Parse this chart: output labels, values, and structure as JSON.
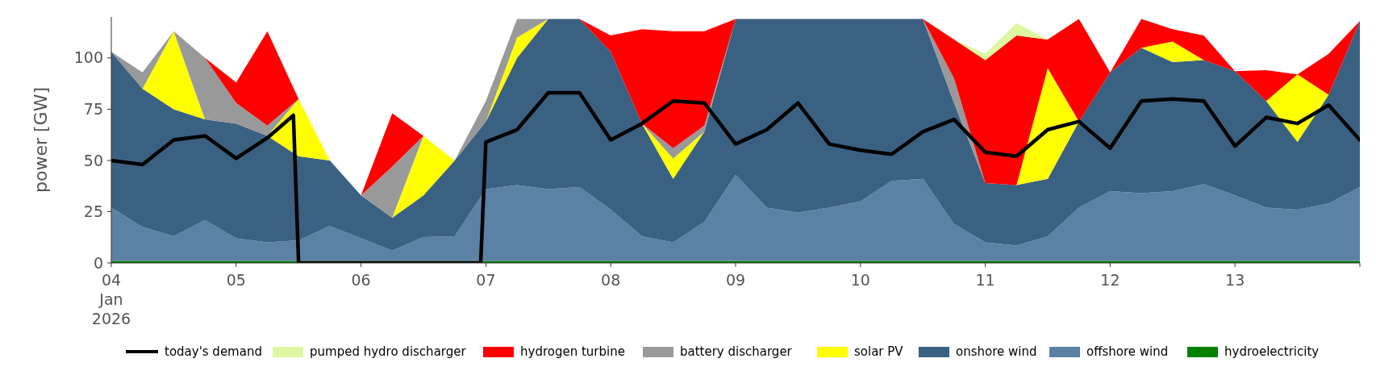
{
  "chart_data": {
    "type": "area",
    "stacked": true,
    "ylabel": "power [GW]",
    "ylim": [
      0,
      120
    ],
    "yticks": [
      0,
      25,
      50,
      75,
      100
    ],
    "xlim": [
      "2026-01-04",
      "2026-01-14"
    ],
    "xticks": [
      {
        "value": "2026-01-04",
        "label": "04\nJan\n2026"
      },
      {
        "value": "2026-01-05",
        "label": "05"
      },
      {
        "value": "2026-01-06",
        "label": "06"
      },
      {
        "value": "2026-01-07",
        "label": "07"
      },
      {
        "value": "2026-01-08",
        "label": "08"
      },
      {
        "value": "2026-01-09",
        "label": "09"
      },
      {
        "value": "2026-01-10",
        "label": "10"
      },
      {
        "value": "2026-01-11",
        "label": "11"
      },
      {
        "value": "2026-01-12",
        "label": "12"
      },
      {
        "value": "2026-01-13",
        "label": "13"
      },
      {
        "value": "2026-01-14",
        "label": null
      }
    ],
    "legend": "bottom",
    "grid": false,
    "x": [
      "2026-01-04T00:00",
      "2026-01-04T06:00",
      "2026-01-04T12:00",
      "2026-01-04T18:00",
      "2026-01-05T00:00",
      "2026-01-05T06:00",
      "2026-01-05T12:00",
      "2026-01-05T18:00",
      "2026-01-06T00:00",
      "2026-01-06T06:00",
      "2026-01-06T12:00",
      "2026-01-06T18:00",
      "2026-01-07T00:00",
      "2026-01-07T06:00",
      "2026-01-07T12:00",
      "2026-01-07T18:00",
      "2026-01-08T00:00",
      "2026-01-08T06:00",
      "2026-01-08T12:00",
      "2026-01-08T18:00",
      "2026-01-09T00:00",
      "2026-01-09T06:00",
      "2026-01-09T12:00",
      "2026-01-09T18:00",
      "2026-01-10T00:00",
      "2026-01-10T06:00",
      "2026-01-10T12:00",
      "2026-01-10T18:00",
      "2026-01-11T00:00",
      "2026-01-11T06:00",
      "2026-01-11T12:00",
      "2026-01-11T18:00",
      "2026-01-12T00:00",
      "2026-01-12T06:00",
      "2026-01-12T12:00",
      "2026-01-12T18:00",
      "2026-01-13T00:00",
      "2026-01-13T06:00",
      "2026-01-13T12:00",
      "2026-01-13T18:00",
      "2026-01-14T00:00"
    ],
    "series": [
      {
        "name": "hydroelectricity",
        "type": "area",
        "color": "#008000",
        "values": [
          1,
          1,
          1,
          1,
          1,
          1,
          1,
          1,
          1,
          1,
          1,
          1,
          1,
          1,
          1,
          1,
          1,
          1,
          1,
          1,
          1,
          1,
          1,
          1,
          1,
          1,
          1,
          1,
          1,
          1,
          1,
          1,
          1,
          1,
          1,
          1,
          1,
          1,
          1,
          1,
          1
        ]
      },
      {
        "name": "offshore wind",
        "type": "area",
        "color": "#5b82a4",
        "values": [
          26,
          16.5,
          12,
          20,
          11,
          9,
          10,
          17,
          11,
          5,
          11.6,
          12,
          35,
          37,
          35,
          36,
          25,
          12,
          9,
          19,
          42,
          26,
          23.5,
          26,
          29,
          39,
          40,
          18,
          9,
          7.5,
          12,
          26,
          34,
          33,
          34,
          37.5,
          32,
          26,
          25,
          28,
          36
        ]
      },
      {
        "name": "onshore wind",
        "type": "area",
        "color": "#3b6182",
        "values": [
          76,
          67.5,
          62,
          49,
          56,
          52,
          41,
          32,
          21,
          16,
          20.4,
          37,
          33,
          62,
          83,
          82,
          77,
          55,
          31,
          44,
          76,
          92,
          94.5,
          92,
          89,
          79,
          78,
          59,
          29,
          29.5,
          28,
          42,
          58,
          71,
          63,
          60.5,
          60.5,
          52,
          33,
          53,
          81
        ]
      },
      {
        "name": "solar PV",
        "type": "area",
        "color": "#ffff00",
        "values": [
          null,
          0,
          38,
          0,
          null,
          0,
          28,
          0,
          null,
          0,
          29,
          0,
          0,
          10,
          0,
          null,
          null,
          0,
          10,
          0,
          null,
          null,
          null,
          null,
          null,
          null,
          null,
          null,
          null,
          0,
          54,
          0,
          null,
          0,
          10,
          0,
          null,
          0,
          33,
          0,
          null
        ]
      },
      {
        "name": "battery discharger",
        "type": "area",
        "color": "#999999",
        "values": [
          0,
          8,
          0,
          30,
          10,
          5,
          0,
          null,
          0,
          25,
          0,
          0,
          10,
          9,
          0,
          null,
          null,
          0,
          5,
          3,
          0,
          null,
          null,
          null,
          null,
          null,
          0,
          12,
          0,
          null,
          null,
          null,
          null,
          null,
          null,
          null,
          null,
          null,
          null,
          null,
          null
        ]
      },
      {
        "name": "hydrogen turbine",
        "type": "area",
        "color": "#ff0000",
        "values": [
          null,
          null,
          null,
          0,
          10,
          46,
          0,
          null,
          0,
          26,
          0,
          null,
          null,
          null,
          null,
          0,
          8,
          46,
          57,
          46,
          0,
          null,
          null,
          null,
          null,
          null,
          0,
          19,
          60,
          73,
          14,
          50,
          0,
          14,
          6,
          12,
          0,
          15,
          0,
          20,
          0
        ]
      },
      {
        "name": "pumped hydro discharger",
        "type": "area",
        "color": "#dcf7a0",
        "values": [
          null,
          null,
          null,
          null,
          null,
          null,
          null,
          null,
          null,
          null,
          null,
          null,
          null,
          null,
          null,
          null,
          null,
          null,
          null,
          null,
          null,
          null,
          null,
          null,
          null,
          null,
          null,
          0,
          3,
          6,
          0,
          null,
          null,
          null,
          null,
          null,
          null,
          null,
          null,
          null,
          null
        ]
      },
      {
        "name": "today's demand",
        "type": "line",
        "color": "#000000",
        "x": [
          "2026-01-04T00:00",
          "2026-01-04T06:00",
          "2026-01-04T12:00",
          "2026-01-04T18:00",
          "2026-01-05T00:00",
          "2026-01-05T06:00",
          "2026-01-05T11:00",
          "2026-01-05T12:00",
          "2026-01-06T23:00",
          "2026-01-07T00:00",
          "2026-01-07T06:00",
          "2026-01-07T12:00",
          "2026-01-07T18:00",
          "2026-01-08T00:00",
          "2026-01-08T06:00",
          "2026-01-08T12:00",
          "2026-01-08T18:00",
          "2026-01-09T00:00",
          "2026-01-09T06:00",
          "2026-01-09T12:00",
          "2026-01-09T18:00",
          "2026-01-10T00:00",
          "2026-01-10T06:00",
          "2026-01-10T12:00",
          "2026-01-10T18:00",
          "2026-01-11T00:00",
          "2026-01-11T06:00",
          "2026-01-11T12:00",
          "2026-01-11T18:00",
          "2026-01-12T00:00",
          "2026-01-12T06:00",
          "2026-01-12T12:00",
          "2026-01-12T18:00",
          "2026-01-13T00:00",
          "2026-01-13T06:00",
          "2026-01-13T12:00",
          "2026-01-13T18:00",
          "2026-01-14T00:00"
        ],
        "values": [
          50,
          48,
          60,
          62,
          51,
          61,
          72,
          0,
          0,
          59,
          65,
          83,
          83,
          60,
          68,
          79,
          78,
          58,
          65,
          78,
          58,
          55,
          53,
          64,
          70,
          54,
          52,
          65,
          69,
          56,
          79,
          80,
          79,
          57,
          71,
          68,
          77,
          60
        ]
      }
    ]
  }
}
